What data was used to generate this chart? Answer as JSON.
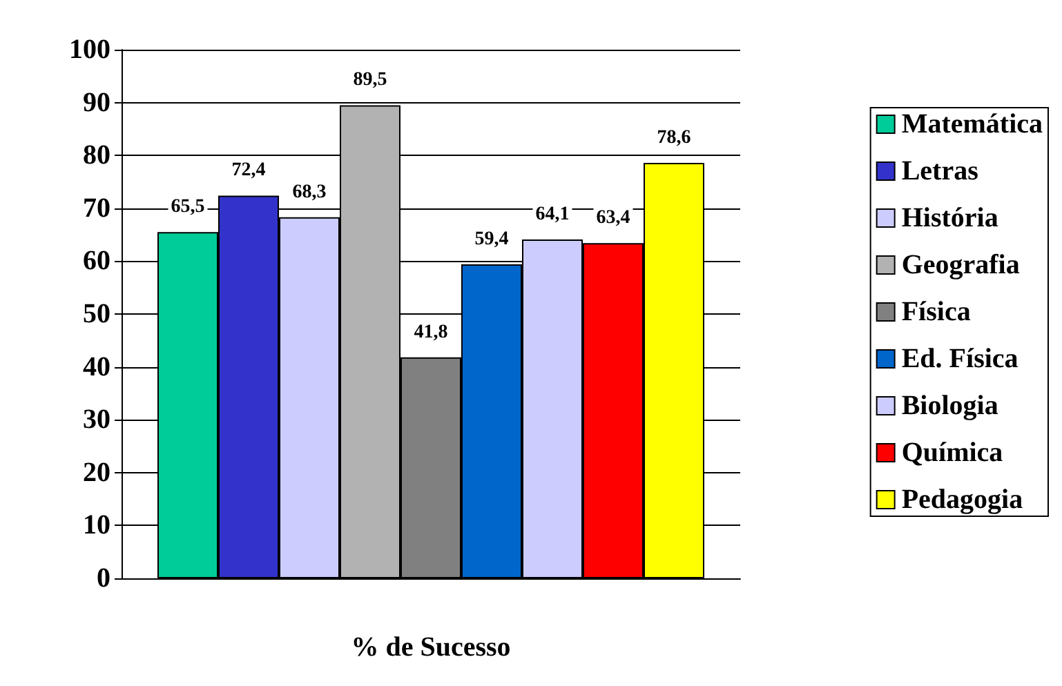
{
  "chart_data": {
    "type": "bar",
    "categories": [
      "% de Sucesso"
    ],
    "series": [
      {
        "name": "Matemática",
        "color": "#00cc99",
        "values": [
          65.5
        ],
        "value_labels": [
          "65,5"
        ]
      },
      {
        "name": "Letras",
        "color": "#3333cc",
        "values": [
          72.4
        ],
        "value_labels": [
          "72,4"
        ]
      },
      {
        "name": "História",
        "color": "#ccccff",
        "values": [
          68.3
        ],
        "value_labels": [
          "68,3"
        ]
      },
      {
        "name": "Geografia",
        "color": "#b2b2b2",
        "values": [
          89.5
        ],
        "value_labels": [
          "89,5"
        ]
      },
      {
        "name": "Física",
        "color": "#808080",
        "values": [
          41.8
        ],
        "value_labels": [
          "41,8"
        ]
      },
      {
        "name": "Ed. Física",
        "color": "#0066cc",
        "values": [
          59.4
        ],
        "value_labels": [
          "59,4"
        ]
      },
      {
        "name": "Biologia",
        "color": "#ccccff",
        "values": [
          64.1
        ],
        "value_labels": [
          "64,1"
        ]
      },
      {
        "name": "Química",
        "color": "#ff0000",
        "values": [
          63.4
        ],
        "value_labels": [
          "63,4"
        ]
      },
      {
        "name": "Pedagogia",
        "color": "#ffff00",
        "values": [
          78.6
        ],
        "value_labels": [
          "78,6"
        ]
      }
    ],
    "ylim": [
      0,
      100
    ],
    "yticks": [
      0,
      10,
      20,
      30,
      40,
      50,
      60,
      70,
      80,
      90,
      100
    ],
    "grid": "y",
    "legend": "right"
  }
}
